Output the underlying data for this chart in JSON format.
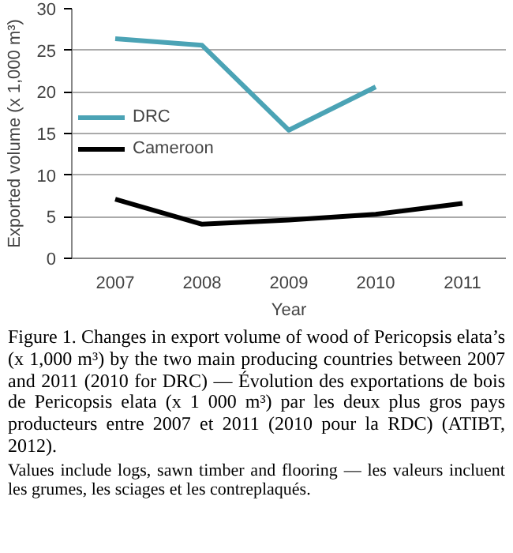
{
  "chart_data": {
    "type": "line",
    "xlabel": "Year",
    "ylabel": "Exported volume (x 1,000 m³)",
    "categories": [
      "2007",
      "2008",
      "2009",
      "2010",
      "2011"
    ],
    "series": [
      {
        "name": "DRC",
        "color": "#4ba3b5",
        "values": [
          26.4,
          25.6,
          15.4,
          20.6,
          null
        ]
      },
      {
        "name": "Cameroon",
        "color": "#000000",
        "values": [
          7.1,
          4.1,
          4.6,
          5.3,
          6.6
        ]
      }
    ],
    "ylim": [
      0,
      30
    ],
    "yticks": [
      0,
      5,
      10,
      15,
      20,
      25,
      30
    ],
    "grid": "y",
    "legend": "left",
    "marker": "none",
    "line_style": "solid",
    "annotations": [
      "Figure 1. Changes in export volume of wood of Pericopsis elata’s (x 1,000 m³) by the two main producing countries between 2007 and 2011 (2010 for DRC) — Évolution des exportations de bois de Pericopsis elata (x 1 000 m³) par les deux plus gros pays producteurs entre 2007 et 2011 (2010 pour la RDC) (ATIBT, 2012).",
      "Values include logs, sawn timber and flooring — les valeurs incluent les grumes, les sciages et les contreplaqués."
    ]
  }
}
